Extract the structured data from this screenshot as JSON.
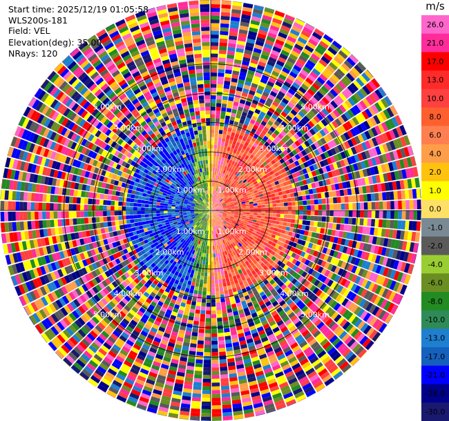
{
  "header": {
    "start_time": "Start time: 2025/12/19 01:05:58",
    "instrument": "WLS200s-181",
    "field": "Field: VEL",
    "elevation": "Elevation(deg): 35.00",
    "nrays": "NRays: 120"
  },
  "range_rings": [
    "1.00km",
    "2.00km",
    "3.00km",
    "4.00km",
    "5.00km"
  ],
  "colorbar": {
    "unit": "m/s",
    "ticks": [
      "26.0",
      "21.0",
      "17.0",
      "13.0",
      "10.0",
      "8.0",
      "6.0",
      "4.0",
      "2.0",
      "1.0",
      "0.0",
      "-1.0",
      "-2.0",
      "-4.0",
      "-6.0",
      "-8.0",
      "-10.0",
      "-13.0",
      "-17.0",
      "-21.0",
      "-26.0",
      "-30.0"
    ],
    "colors": [
      "#ff66cc",
      "#ff2c9a",
      "#ff0000",
      "#ff2b2b",
      "#ff4040",
      "#ff5f2e",
      "#ff7f50",
      "#ff9e48",
      "#ffc20e",
      "#ffff00",
      "#ffe066",
      "#7a8a95",
      "#5a5a5a",
      "#9acd32",
      "#6b8e23",
      "#228b22",
      "#2e8b57",
      "#1e7fd0",
      "#1560bd",
      "#0000ff",
      "#00008b",
      "#191970"
    ]
  }
}
